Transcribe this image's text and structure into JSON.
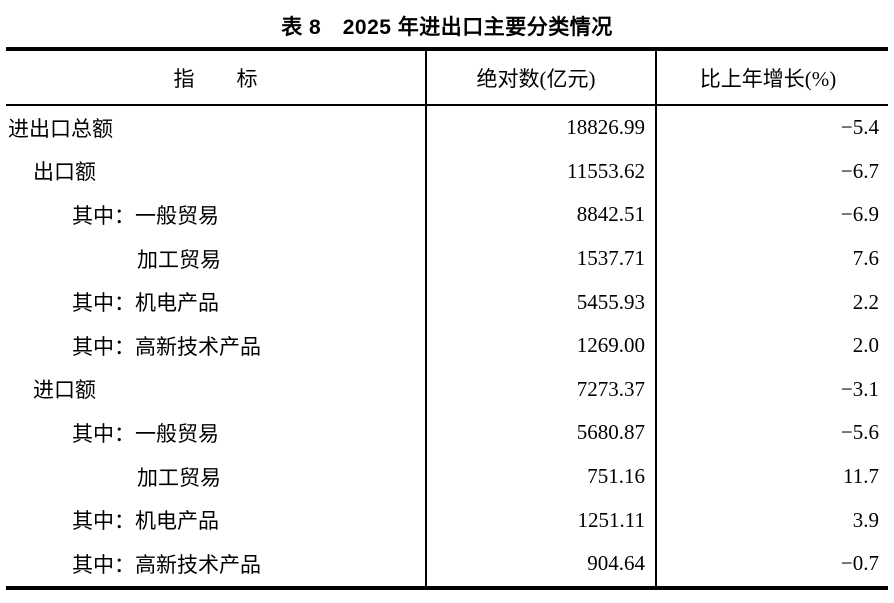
{
  "page": {
    "title": "表 8　2025 年进出口主要分类情况"
  },
  "table": {
    "header": {
      "indicator": "指　　标",
      "absolute": "绝对数(亿元)",
      "growth": "比上年增长(%)"
    },
    "rows": [
      {
        "indicator": "进出口总额",
        "indent": 0,
        "absolute": "18826.99",
        "growth": "−5.4"
      },
      {
        "indicator": "出口额",
        "indent": 1,
        "absolute": "11553.62",
        "growth": "−6.7"
      },
      {
        "indicator": "其中：一般贸易",
        "indent": 2,
        "absolute": "8842.51",
        "growth": "−6.9"
      },
      {
        "indicator": "加工贸易",
        "indent": 3,
        "absolute": "1537.71",
        "growth": "7.6"
      },
      {
        "indicator": "其中：机电产品",
        "indent": 2,
        "absolute": "5455.93",
        "growth": "2.2"
      },
      {
        "indicator": "其中：高新技术产品",
        "indent": 2,
        "absolute": "1269.00",
        "growth": "2.0"
      },
      {
        "indicator": "进口额",
        "indent": 1,
        "absolute": "7273.37",
        "growth": "−3.1"
      },
      {
        "indicator": "其中：一般贸易",
        "indent": 2,
        "absolute": "5680.87",
        "growth": "−5.6"
      },
      {
        "indicator": "加工贸易",
        "indent": 3,
        "absolute": "751.16",
        "growth": "11.7"
      },
      {
        "indicator": "其中：机电产品",
        "indent": 2,
        "absolute": "1251.11",
        "growth": "3.9"
      },
      {
        "indicator": "其中：高新技术产品",
        "indent": 2,
        "absolute": "904.64",
        "growth": "−0.7"
      }
    ]
  }
}
